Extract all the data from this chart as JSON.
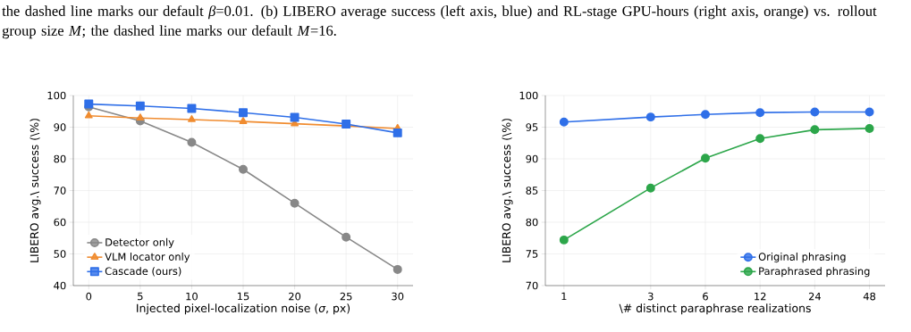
{
  "chart_data": [
    {
      "type": "line",
      "xlabel": "Injected pixel-localization noise (*σ*, px)",
      "ylabel": "LIBERO avg.\\ success (\\%)",
      "annotations": [
        "the dashed line marks our default *β*=0.01. (b) LIBERO average success (left axis, blue) and RL-stage GPU-hours (right axis, orange) vs. rollout group size *M*; the dashed line marks our default *M*=16."
      ],
      "x": [
        0,
        5,
        10,
        15,
        20,
        25,
        30
      ],
      "series": [
        {
          "name": "Detector only",
          "color": "#888888",
          "marker": "circle",
          "values": [
            96.4,
            92.0,
            85.2,
            76.7,
            66.0,
            55.3,
            45.1
          ]
        },
        {
          "name": "VLM locator only",
          "color": "#f08c30",
          "marker": "triangle",
          "values": [
            93.6,
            92.9,
            92.4,
            91.8,
            91.1,
            90.4,
            89.6
          ]
        },
        {
          "name": "Cascade (ours)",
          "color": "#2f6fe8",
          "marker": "square",
          "values": [
            97.3,
            96.7,
            95.9,
            94.6,
            93.1,
            91.0,
            88.2
          ]
        }
      ],
      "xlim": [
        -1.5,
        31.5
      ],
      "ylim": [
        40,
        100
      ],
      "xticks": [
        0,
        5,
        10,
        15,
        20,
        25,
        30
      ],
      "yticks": [
        40,
        50,
        60,
        70,
        80,
        90,
        100
      ],
      "grid": true,
      "legend": "bottom left",
      "line_style": "solid"
    },
    {
      "type": "line",
      "xlabel": "\\# distinct paraphrase realizations",
      "ylabel": "LIBERO avg.\\ success (\\%)",
      "x": [
        1,
        3,
        6,
        12,
        24,
        48
      ],
      "series": [
        {
          "name": "Original phrasing",
          "color": "#2f6fe8",
          "marker": "circle",
          "values": [
            95.8,
            96.6,
            97.0,
            97.3,
            97.4,
            97.4
          ]
        },
        {
          "name": "Paraphrased phrasing",
          "color": "#2ca64a",
          "marker": "circle",
          "values": [
            77.2,
            85.4,
            90.1,
            93.2,
            94.6,
            94.8
          ]
        }
      ],
      "xlim": [
        0.79,
        58.5
      ],
      "ylim": [
        70,
        100
      ],
      "xticks": [
        1,
        3,
        6,
        12,
        24,
        48
      ],
      "yticks": [
        70,
        75,
        80,
        85,
        90,
        95,
        100
      ],
      "log": "x",
      "grid": true,
      "legend": "bottom right",
      "line_style": "solid"
    }
  ]
}
